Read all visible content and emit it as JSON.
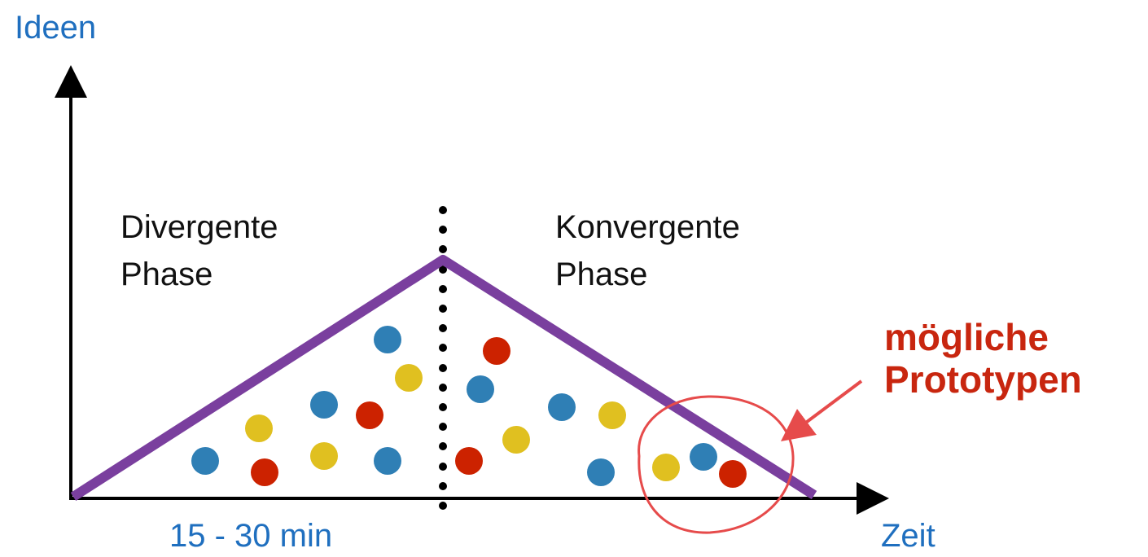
{
  "labels": {
    "y_axis": "Ideen",
    "x_axis": "Zeit",
    "duration": "15 - 30 min",
    "left_phase": [
      "Divergente",
      "Phase"
    ],
    "right_phase": [
      "Konvergente",
      "Phase"
    ],
    "annotation": [
      "mögliche",
      "Prototypen"
    ]
  },
  "colors": {
    "axis": "#000000",
    "triangle": "#7a3f9e",
    "blue": "#2f7fb5",
    "yellow": "#e0c020",
    "red": "#cc2200",
    "highlight": "#e64b4b",
    "annotation_text": "#c8260f",
    "axis_label_text": "#1f6fbf"
  },
  "dot_colors": [
    "blue",
    "red",
    "yellow",
    "blue",
    "yellow",
    "red",
    "blue",
    "yellow",
    "blue",
    "red",
    "blue",
    "red",
    "yellow",
    "blue",
    "yellow",
    "blue",
    "yellow",
    "blue",
    "red"
  ]
}
